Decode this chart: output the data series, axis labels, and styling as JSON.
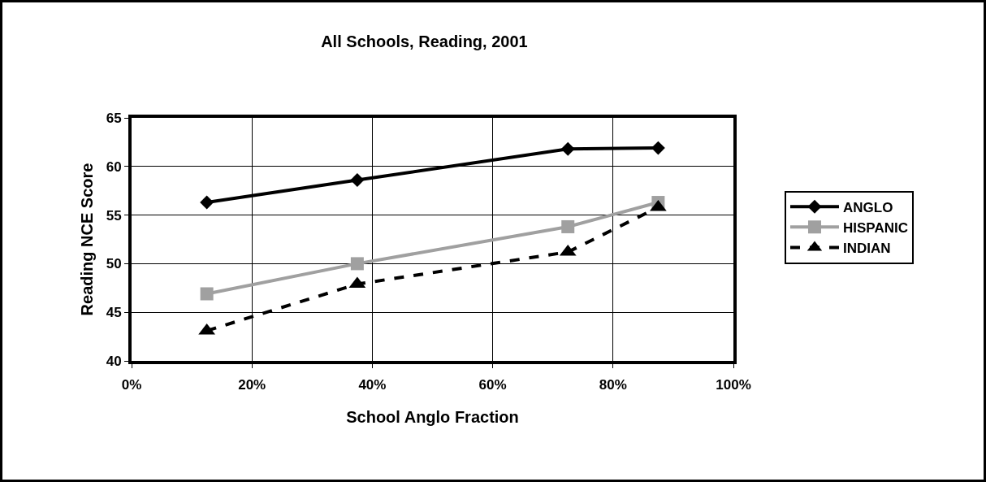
{
  "chart_data": {
    "type": "line",
    "title": "All Schools, Reading, 2001",
    "xlabel": "School Anglo Fraction",
    "ylabel": "Reading NCE Score",
    "x": [
      12.5,
      37.5,
      72.5,
      87.5
    ],
    "series": [
      {
        "name": "ANGLO",
        "color": "#000000",
        "marker": "diamond",
        "line_style": "solid",
        "values": [
          56.3,
          58.6,
          61.8,
          61.9
        ]
      },
      {
        "name": "HISPANIC",
        "color": "#a0a0a0",
        "marker": "square",
        "line_style": "solid",
        "values": [
          46.9,
          50,
          53.8,
          56.3
        ]
      },
      {
        "name": "INDIAN",
        "color": "#000000",
        "marker": "triangle",
        "line_style": "dashed",
        "values": [
          43.1,
          47.9,
          51.2,
          55.8
        ]
      }
    ],
    "xlim": [
      0,
      100
    ],
    "xticks": [
      {
        "value": 0,
        "label": "0%"
      },
      {
        "value": 20,
        "label": "20%"
      },
      {
        "value": 40,
        "label": "40%"
      },
      {
        "value": 60,
        "label": "60%"
      },
      {
        "value": 80,
        "label": "80%"
      },
      {
        "value": 100,
        "label": "100%"
      }
    ],
    "ylim": [
      40,
      65
    ],
    "yticks": [
      40,
      45,
      50,
      55,
      60,
      65
    ],
    "grid": true,
    "legend": "right"
  }
}
